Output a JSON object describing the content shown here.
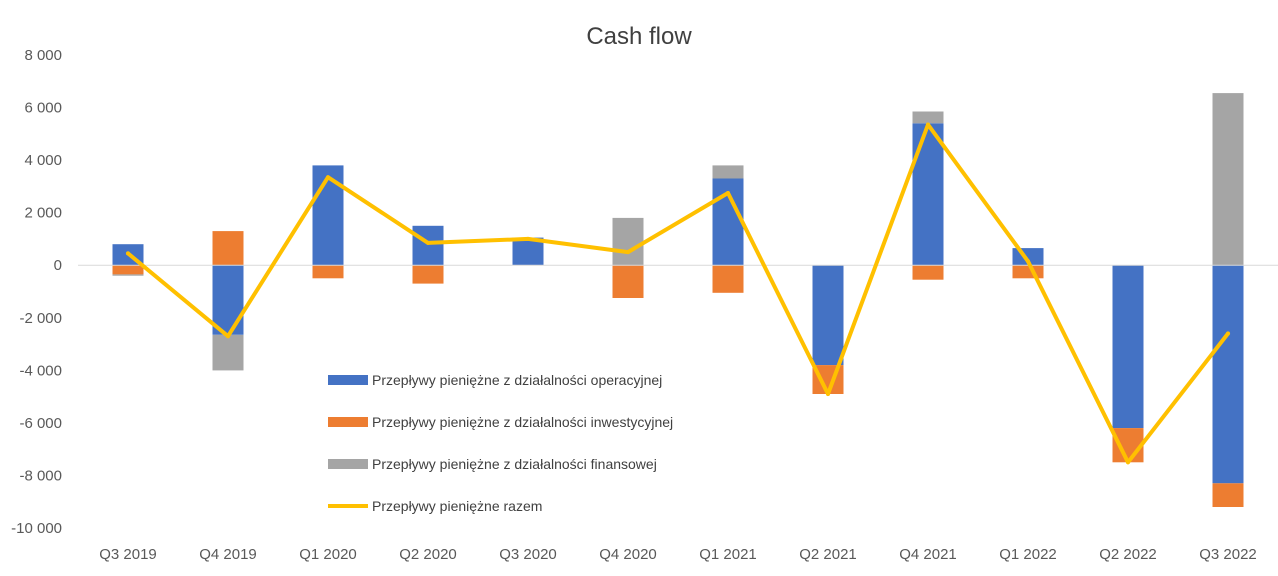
{
  "chart_data": {
    "type": "bar",
    "title": "Cash flow",
    "xlabel": "",
    "ylabel": "",
    "categories": [
      "Q3 2019",
      "Q4 2019",
      "Q1 2020",
      "Q2 2020",
      "Q3 2020",
      "Q4 2020",
      "Q1 2021",
      "Q2 2021",
      "Q4 2021",
      "Q1 2022",
      "Q2 2022",
      "Q3 2022"
    ],
    "ylim": [
      -10000,
      8000
    ],
    "yticks": [
      8000,
      6000,
      4000,
      2000,
      0,
      -2000,
      -4000,
      -6000,
      -8000,
      -10000
    ],
    "ytick_labels": [
      "8 000",
      "6 000",
      "4 000",
      "2 000",
      "0",
      "-2 000",
      "-4 000",
      "-6 000",
      "-8 000",
      "-10 000"
    ],
    "grid": false,
    "legend_position": "center-left",
    "series": [
      {
        "name": "Przepływy pieniężne z działalności operacyjnej",
        "kind": "bar",
        "color": "#4472C4",
        "values": [
          800,
          -2650,
          3800,
          1500,
          1050,
          0,
          3300,
          -3800,
          5400,
          650,
          -6200,
          -8300
        ]
      },
      {
        "name": "Przepływy pieniężne z działalności inwestycyjnej",
        "kind": "bar",
        "color": "#ED7D31",
        "values": [
          -350,
          1300,
          -500,
          -700,
          0,
          -1250,
          -1050,
          -1100,
          -550,
          -500,
          -1300,
          -900
        ]
      },
      {
        "name": "Przepływy pieniężne z działalności finansowej",
        "kind": "bar",
        "color": "#A5A5A5",
        "values": [
          -50,
          -1350,
          0,
          0,
          0,
          1800,
          500,
          0,
          450,
          0,
          0,
          6550
        ]
      },
      {
        "name": "Przepływy pieniężne razem",
        "kind": "line",
        "color": "#FFC000",
        "values": [
          450,
          -2700,
          3350,
          850,
          1000,
          500,
          2750,
          -4900,
          5350,
          150,
          -7500,
          -2600
        ]
      }
    ]
  }
}
